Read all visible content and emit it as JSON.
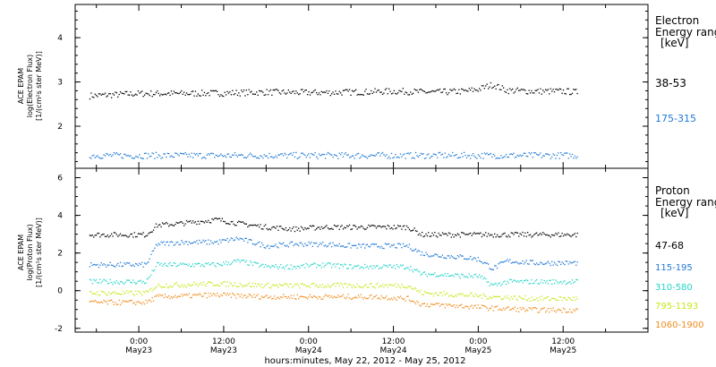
{
  "xlabel": "hours:minutes, May 22, 2012 - May 25, 2012",
  "x_ticks": [
    {
      "time": "0:00",
      "day": "May23",
      "hours": 24
    },
    {
      "time": "12:00",
      "day": "May23",
      "hours": 36
    },
    {
      "time": "0:00",
      "day": "May24",
      "hours": 48
    },
    {
      "time": "12:00",
      "day": "May24",
      "hours": 60
    },
    {
      "time": "0:00",
      "day": "May25",
      "hours": 72
    },
    {
      "time": "12:00",
      "day": "May25",
      "hours": 84
    }
  ],
  "colors": {
    "black": "#000000",
    "blue": "#1f78d6",
    "cyan": "#22d4c8",
    "yellow": "#c8e619",
    "orange": "#ef8c1a"
  },
  "chart_data": [
    {
      "type": "scatter",
      "panel": "electron",
      "ylabel_lines": [
        "ACE EPAM",
        "log(Electron Flux)",
        "[1/(cm²s ster MeV)]"
      ],
      "yticks": [
        "2",
        "3",
        "4"
      ],
      "ylim": [
        1.05,
        4.75
      ],
      "xlim_hours": [
        15,
        96
      ],
      "legend_title": [
        "Electron",
        "Energy ranges",
        "[keV]"
      ],
      "series": [
        {
          "name": "38-53",
          "color": "#000000",
          "x_hours": [
            17,
            20,
            24,
            30,
            36,
            42,
            48,
            54,
            60,
            66,
            70,
            72,
            74,
            76,
            80,
            84,
            86
          ],
          "y": [
            2.7,
            2.72,
            2.75,
            2.75,
            2.76,
            2.78,
            2.77,
            2.78,
            2.8,
            2.78,
            2.8,
            2.85,
            2.95,
            2.82,
            2.8,
            2.8,
            2.78
          ]
        },
        {
          "name": "175-315",
          "color": "#1f78d6",
          "x_hours": [
            17,
            86
          ],
          "y": [
            1.35,
            1.35
          ]
        }
      ]
    },
    {
      "type": "scatter",
      "panel": "proton",
      "ylabel_lines": [
        "ACE EPAM",
        "log(Proton Flux)",
        "[1/(cm²s ster MeV)]"
      ],
      "yticks": [
        "-2",
        "0",
        "2",
        "4",
        "6"
      ],
      "ylim": [
        -2.2,
        6.5
      ],
      "xlim_hours": [
        15,
        96
      ],
      "legend_title": [
        "Proton",
        "Energy ranges",
        "[keV]"
      ],
      "series": [
        {
          "name": "47-68",
          "color": "#000000",
          "x_hours": [
            17,
            25,
            26.5,
            30,
            35,
            38,
            42,
            46,
            50,
            54,
            58,
            62,
            64,
            68,
            74,
            80,
            86
          ],
          "y": [
            3.0,
            3.0,
            3.5,
            3.6,
            3.8,
            3.6,
            3.4,
            3.3,
            3.4,
            3.4,
            3.4,
            3.4,
            3.0,
            3.0,
            3.0,
            3.0,
            3.0
          ]
        },
        {
          "name": "115-195",
          "color": "#1f78d6",
          "x_hours": [
            17,
            25,
            26.5,
            30,
            35,
            38,
            42,
            46,
            50,
            54,
            58,
            62,
            64,
            66,
            70,
            72,
            74,
            76,
            80,
            86
          ],
          "y": [
            1.4,
            1.4,
            2.5,
            2.6,
            2.6,
            2.8,
            2.4,
            2.5,
            2.5,
            2.4,
            2.4,
            2.4,
            2.0,
            1.9,
            1.8,
            1.7,
            1.2,
            1.6,
            1.5,
            1.5
          ]
        },
        {
          "name": "310-580",
          "color": "#22d4c8",
          "x_hours": [
            17,
            25,
            26.5,
            30,
            35,
            38,
            42,
            46,
            50,
            54,
            58,
            62,
            64,
            66,
            70,
            72,
            74,
            76,
            80,
            86
          ],
          "y": [
            0.5,
            0.5,
            1.4,
            1.4,
            1.4,
            1.6,
            1.3,
            1.3,
            1.4,
            1.3,
            1.3,
            1.3,
            0.9,
            0.9,
            0.8,
            0.8,
            0.3,
            0.5,
            0.5,
            0.5
          ]
        },
        {
          "name": "795-1193",
          "color": "#c8e619",
          "x_hours": [
            17,
            25,
            26.5,
            35,
            42,
            50,
            58,
            62,
            64,
            70,
            74,
            80,
            86
          ],
          "y": [
            -0.1,
            -0.1,
            0.3,
            0.4,
            0.3,
            0.3,
            0.3,
            0.3,
            -0.1,
            -0.2,
            -0.3,
            -0.4,
            -0.4
          ]
        },
        {
          "name": "1060-1900",
          "color": "#ef8c1a",
          "x_hours": [
            17,
            25,
            26.5,
            35,
            42,
            50,
            58,
            62,
            64,
            70,
            74,
            80,
            86
          ],
          "y": [
            -0.6,
            -0.6,
            -0.3,
            -0.2,
            -0.3,
            -0.3,
            -0.3,
            -0.4,
            -0.7,
            -0.8,
            -0.9,
            -1.0,
            -1.0
          ]
        }
      ]
    }
  ]
}
